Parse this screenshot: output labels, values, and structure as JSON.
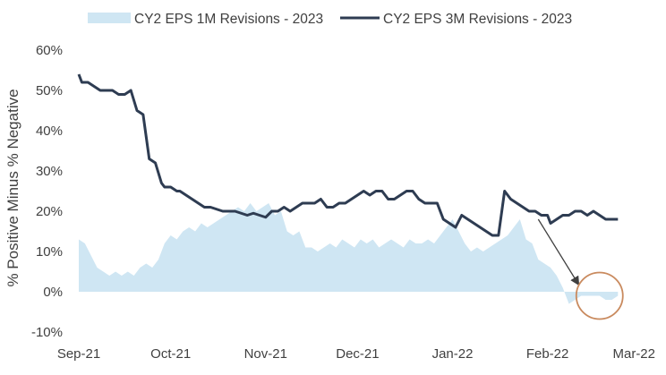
{
  "chart_data": {
    "type": "line",
    "title": "",
    "xlabel": "",
    "ylabel": "% Positive Minus % Negative",
    "ylim": [
      -10,
      60
    ],
    "y_ticks": [
      "-10%",
      "0%",
      "10%",
      "20%",
      "30%",
      "40%",
      "50%",
      "60%"
    ],
    "y_tick_values": [
      -10,
      0,
      10,
      20,
      30,
      40,
      50,
      60
    ],
    "xlim": [
      0,
      180
    ],
    "x_tick_labels": [
      "Sep-21",
      "Oct-21",
      "Nov-21",
      "Dec-21",
      "Jan-22",
      "Feb-22",
      "Mar-22"
    ],
    "x_tick_positions": [
      0,
      30,
      61,
      91,
      122,
      153,
      181
    ],
    "legend_position": "top",
    "grid": false,
    "series": [
      {
        "name": "CY2 EPS 1M Revisions - 2023",
        "style": "area",
        "color": "#cfe6f3",
        "x": [
          0,
          2,
          4,
          6,
          8,
          10,
          12,
          14,
          16,
          18,
          20,
          22,
          24,
          26,
          28,
          30,
          32,
          34,
          36,
          38,
          40,
          42,
          44,
          46,
          48,
          50,
          52,
          54,
          56,
          58,
          60,
          62,
          64,
          66,
          68,
          70,
          72,
          74,
          76,
          78,
          80,
          82,
          84,
          86,
          88,
          90,
          92,
          94,
          96,
          98,
          100,
          102,
          104,
          106,
          108,
          110,
          112,
          114,
          116,
          118,
          120,
          122,
          124,
          126,
          128,
          130,
          132,
          134,
          136,
          138,
          140,
          142,
          144,
          146,
          148,
          150,
          152,
          154,
          156,
          158,
          160,
          162,
          164,
          166,
          168,
          170,
          172,
          174,
          176
        ],
        "values": [
          13,
          12,
          9,
          6,
          5,
          4,
          5,
          4,
          5,
          4,
          6,
          7,
          6,
          8,
          12,
          14,
          13,
          15,
          16,
          15,
          17,
          16,
          17,
          18,
          19,
          20,
          21,
          20,
          22,
          20,
          21,
          22,
          19,
          20,
          15,
          14,
          15,
          11,
          11,
          10,
          11,
          12,
          11,
          13,
          12,
          11,
          13,
          12,
          13,
          11,
          12,
          13,
          12,
          11,
          13,
          12,
          12,
          13,
          12,
          14,
          16,
          18,
          15,
          12,
          10,
          11,
          10,
          11,
          12,
          13,
          14,
          16,
          18,
          13,
          12,
          8,
          7,
          6,
          4,
          1,
          -3,
          -2,
          -1,
          -1,
          -1,
          -1,
          -2,
          -2,
          -1
        ]
      },
      {
        "name": "CY2 EPS 3M Revisions - 2023",
        "style": "line",
        "color": "#2e3c52",
        "x": [
          0,
          1,
          3,
          5,
          7,
          9,
          11,
          13,
          15,
          17,
          19,
          21,
          23,
          25,
          27,
          28,
          30,
          32,
          33,
          35,
          37,
          39,
          41,
          43,
          45,
          47,
          49,
          51,
          53,
          55,
          57,
          59,
          61,
          63,
          65,
          67,
          69,
          71,
          73,
          75,
          77,
          79,
          81,
          83,
          85,
          87,
          89,
          91,
          93,
          95,
          97,
          99,
          101,
          103,
          105,
          107,
          109,
          111,
          113,
          115,
          117,
          119,
          121,
          123,
          125,
          127,
          129,
          131,
          133,
          135,
          137,
          139,
          141,
          143,
          145,
          147,
          149,
          151,
          153,
          154,
          156,
          158,
          160,
          162,
          164,
          166,
          168,
          170,
          172,
          174,
          176
        ],
        "values": [
          54,
          52,
          52,
          51,
          50,
          50,
          50,
          49,
          49,
          50,
          45,
          44,
          33,
          32,
          27,
          26,
          26,
          25,
          25,
          24,
          23,
          22,
          21,
          21,
          20.5,
          20,
          20,
          20,
          19.5,
          19,
          19.5,
          19,
          18.5,
          20,
          20,
          21,
          20,
          21,
          22,
          22,
          22,
          23,
          21,
          21,
          22,
          22,
          23,
          24,
          25,
          24,
          25,
          25,
          23,
          23,
          24,
          25,
          25,
          23,
          22,
          22,
          22,
          18,
          17,
          16,
          19,
          18,
          17,
          16,
          15,
          14,
          14,
          25,
          23,
          22,
          21,
          20,
          20,
          19,
          19,
          17,
          18,
          19,
          19,
          20,
          20,
          19,
          20,
          19,
          18,
          18,
          18
        ]
      }
    ],
    "annotations": [
      {
        "type": "arrow",
        "from": [
          150,
          18
        ],
        "to": [
          163,
          2
        ]
      },
      {
        "type": "circle",
        "center": [
          170,
          -1
        ],
        "note": "highlight"
      }
    ]
  }
}
